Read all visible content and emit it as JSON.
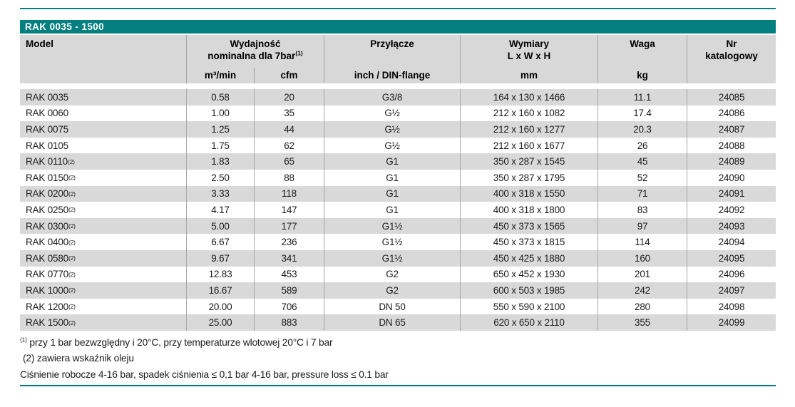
{
  "title": "RAK 0035 - 1500",
  "colors": {
    "accent_teal": "#037F80",
    "header_gray": "#D8D8D8",
    "row_gray": "#D9D9D9",
    "divider_gray": "#A3A3A3"
  },
  "header": {
    "model_label": "Model",
    "capacity_line1": "Wydajność",
    "capacity_line2": "nominalna dla 7bar",
    "capacity_footnote_ref": "(1)",
    "capacity_unit_metric": "m³/min",
    "capacity_unit_imperial": "cfm",
    "connection_label": "Przyłącze",
    "connection_unit": "inch / DIN-flange",
    "dimensions_label": "Wymiary",
    "dimensions_line2": "L x W x H",
    "dimensions_unit": "mm",
    "weight_label": "Waga",
    "weight_unit": "kg",
    "catalog_line1": "Nr",
    "catalog_line2": "katalogowy"
  },
  "rows": [
    {
      "model": "RAK 0035",
      "sup": "",
      "m3min": "0.58",
      "cfm": "20",
      "conn": "G3/8",
      "dims": "164 x 130 x 1466",
      "weight": "11.1",
      "catalog": "24085"
    },
    {
      "model": "RAK 0060",
      "sup": "",
      "m3min": "1.00",
      "cfm": "35",
      "conn": "G½",
      "dims": "212 x 160 x 1082",
      "weight": "17.4",
      "catalog": "24086"
    },
    {
      "model": "RAK 0075",
      "sup": "",
      "m3min": "1.25",
      "cfm": "44",
      "conn": "G½",
      "dims": "212 x 160 x 1277",
      "weight": "20.3",
      "catalog": "24087"
    },
    {
      "model": "RAK 0105",
      "sup": "",
      "m3min": "1.75",
      "cfm": "62",
      "conn": "G½",
      "dims": "212 x 160 x 1677",
      "weight": "26",
      "catalog": "24088"
    },
    {
      "model": "RAK 0110",
      "sup": "(2)",
      "m3min": "1.83",
      "cfm": "65",
      "conn": "G1",
      "dims": "350 x 287 x 1545",
      "weight": "45",
      "catalog": "24089"
    },
    {
      "model": "RAK 0150",
      "sup": "(2)",
      "m3min": "2.50",
      "cfm": "88",
      "conn": "G1",
      "dims": "350 x 287 x 1795",
      "weight": "52",
      "catalog": "24090"
    },
    {
      "model": "RAK 0200",
      "sup": "(2)",
      "m3min": "3.33",
      "cfm": "118",
      "conn": "G1",
      "dims": "400 x 318 x 1550",
      "weight": "71",
      "catalog": "24091"
    },
    {
      "model": "RAK 0250",
      "sup": "(2)",
      "m3min": "4.17",
      "cfm": "147",
      "conn": "G1",
      "dims": "400 x 318 x 1800",
      "weight": "83",
      "catalog": "24092"
    },
    {
      "model": "RAK 0300",
      "sup": "(2)",
      "m3min": "5.00",
      "cfm": "177",
      "conn": "G1½",
      "dims": "450 x 373 x 1565",
      "weight": "97",
      "catalog": "24093"
    },
    {
      "model": "RAK 0400",
      "sup": "(2)",
      "m3min": "6.67",
      "cfm": "236",
      "conn": "G1½",
      "dims": "450 x 373 x 1815",
      "weight": "114",
      "catalog": "24094"
    },
    {
      "model": "RAK 0580",
      "sup": "(2)",
      "m3min": "9.67",
      "cfm": "341",
      "conn": "G1½",
      "dims": "450 x 425 x 1880",
      "weight": "160",
      "catalog": "24095"
    },
    {
      "model": "RAK 0770",
      "sup": "(2)",
      "m3min": "12.83",
      "cfm": "453",
      "conn": "G2",
      "dims": "650 x 452 x 1930",
      "weight": "201",
      "catalog": "24096"
    },
    {
      "model": "RAK 1000",
      "sup": "(2)",
      "m3min": "16.67",
      "cfm": "589",
      "conn": "G2",
      "dims": "600 x 503 x 1985",
      "weight": "242",
      "catalog": "24097"
    },
    {
      "model": "RAK 1200",
      "sup": "(2)",
      "m3min": "20.00",
      "cfm": "706",
      "conn": "DN 50",
      "dims": "550 x 590 x 2100",
      "weight": "280",
      "catalog": "24098"
    },
    {
      "model": "RAK 1500",
      "sup": "(2)",
      "m3min": "25.00",
      "cfm": "883",
      "conn": "DN 65",
      "dims": "620 x 650 x 2110",
      "weight": "355",
      "catalog": "24099"
    }
  ],
  "footnotes": {
    "note1_ref": "(1)",
    "note1_text": " przy 1 bar bezwzględny i 20°C, przy temperaturze wlotowej 20°C i 7 bar",
    "note2": "(2) zawiera wskaźnik oleju",
    "note3": "Ciśnienie robocze 4-16 bar, spadek ciśnienia ≤ 0,1 bar 4-16 bar, pressure loss ≤ 0.1 bar"
  }
}
